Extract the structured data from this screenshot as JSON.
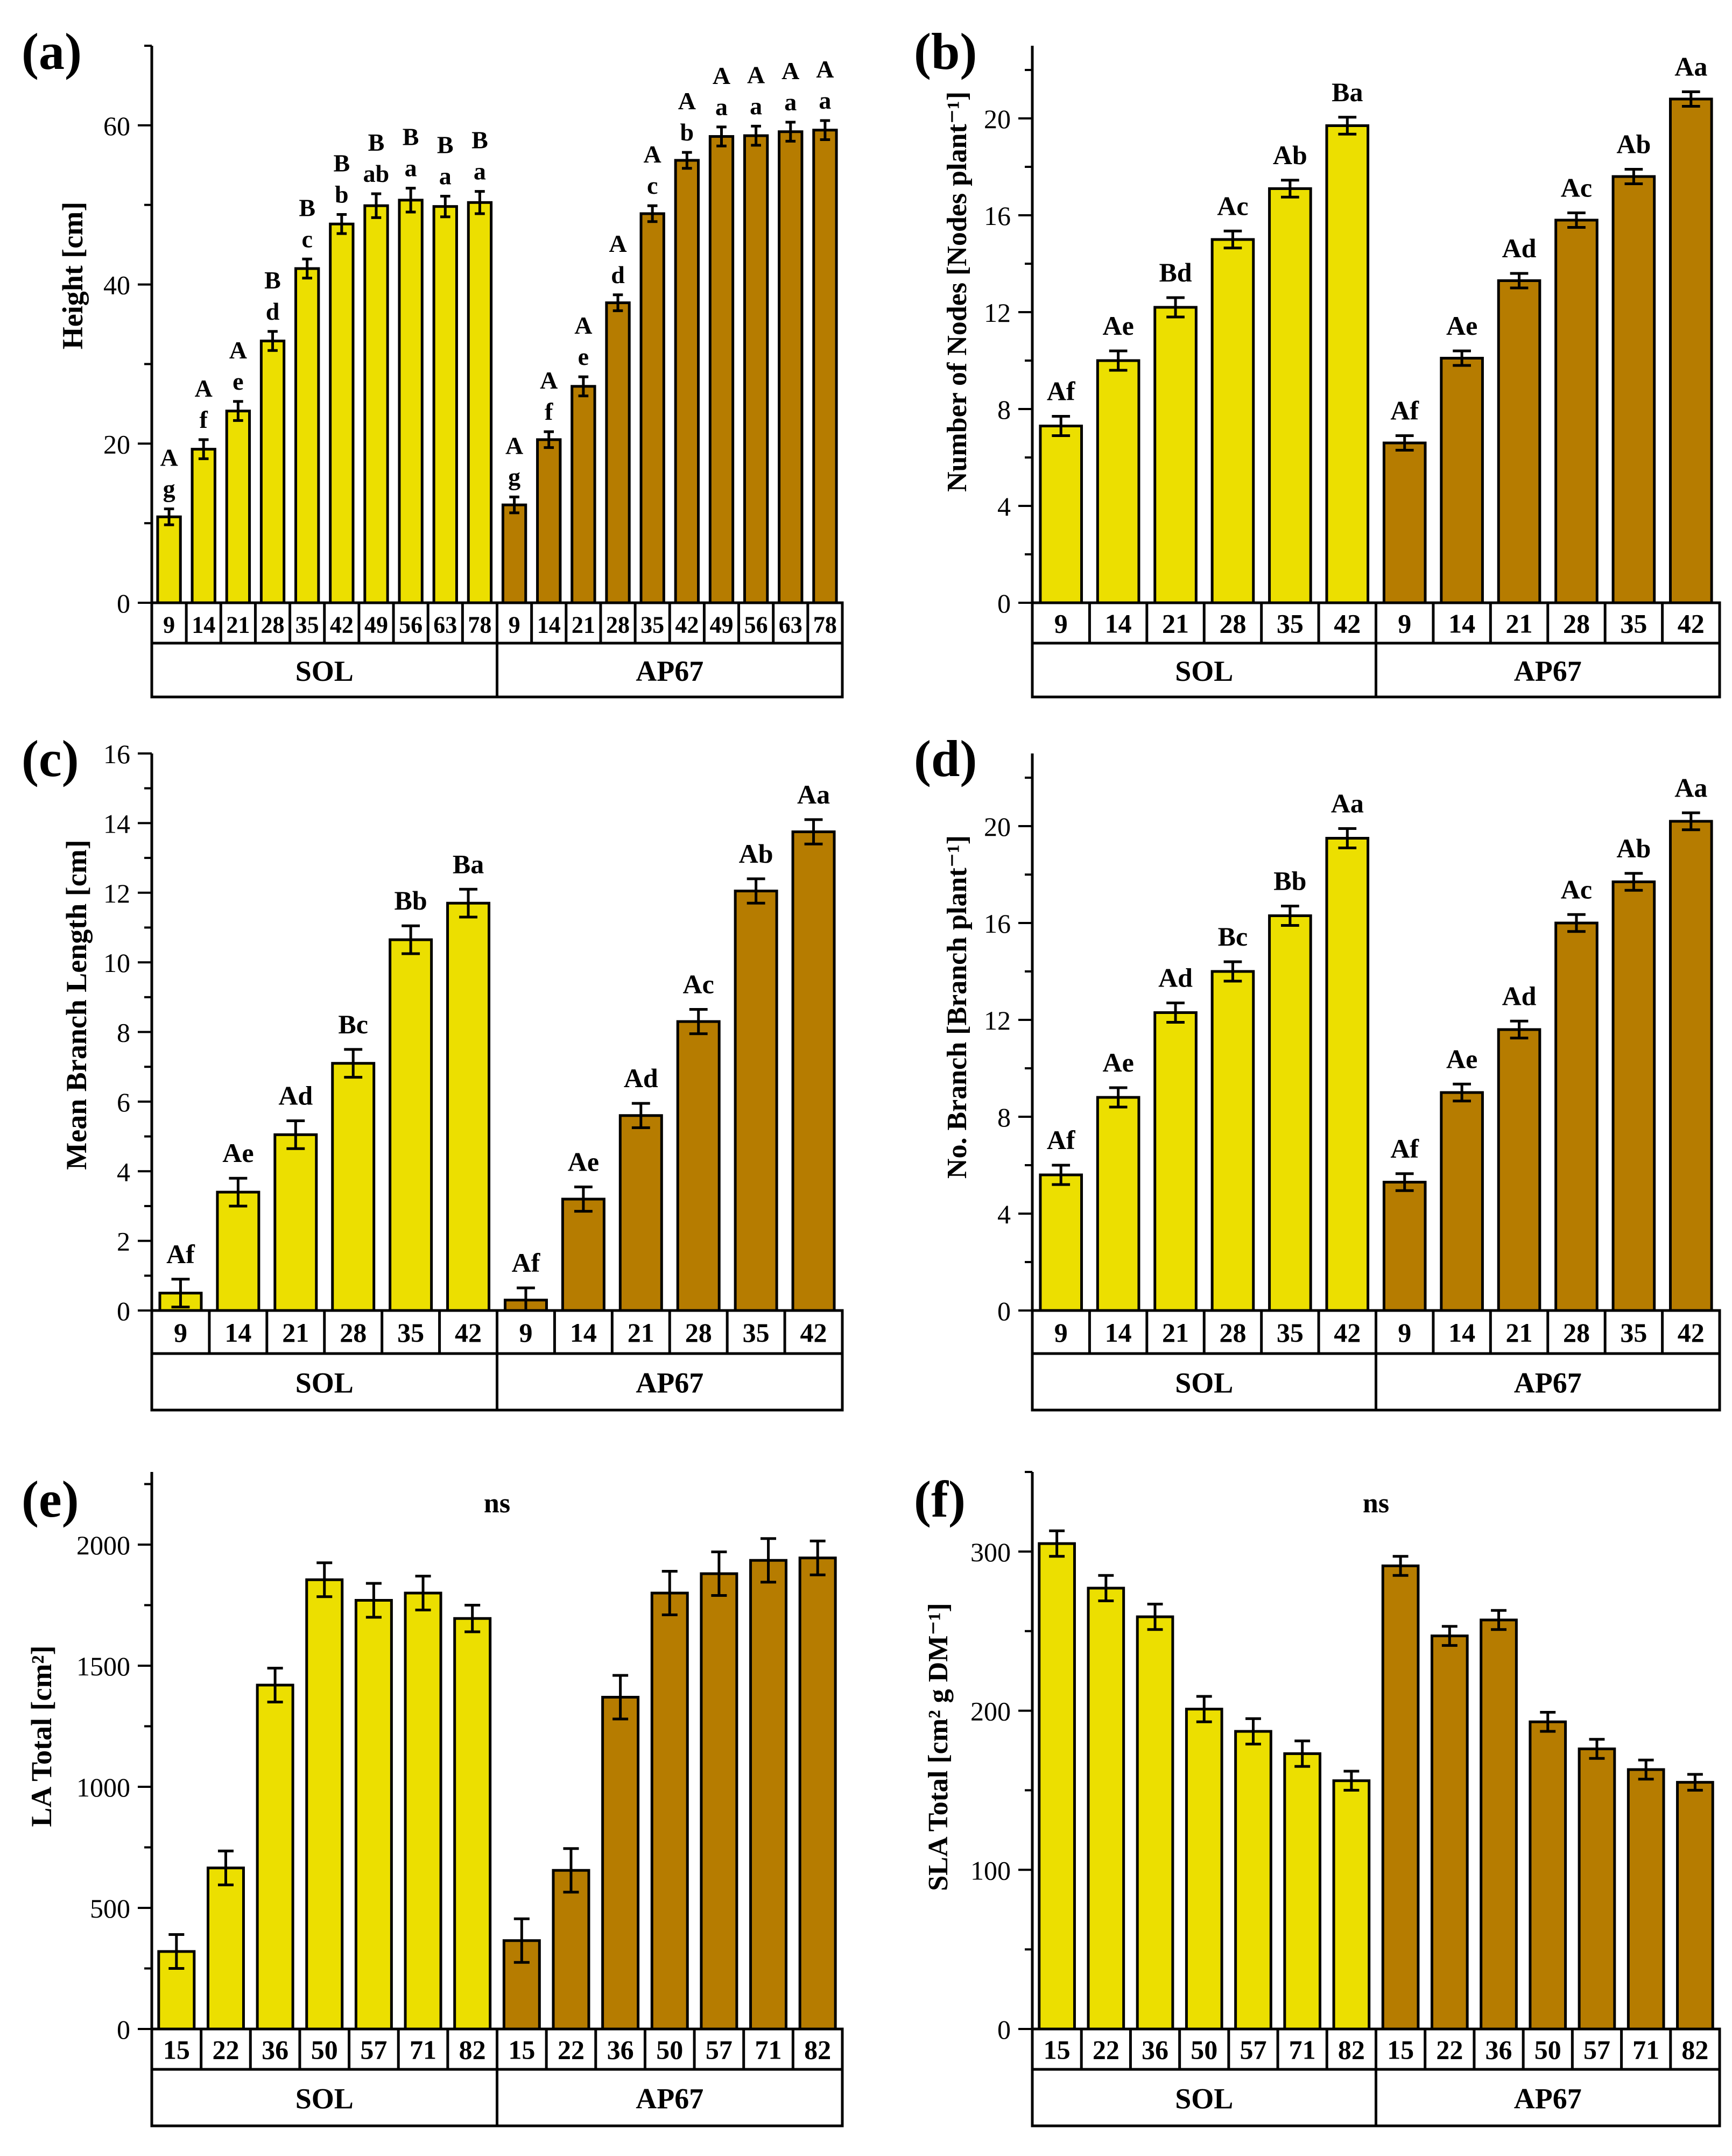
{
  "colors": {
    "sol": "#ecdf00",
    "ap67": "#b67c00",
    "stroke": "#000000"
  },
  "groups": [
    "SOL",
    "AP67"
  ],
  "chart_data": [
    {
      "id": "a",
      "panel_label": "(a)",
      "type": "bar",
      "ylabel": "Height [cm]",
      "ylim": [
        0,
        70
      ],
      "yticks": [
        0,
        20,
        40,
        60
      ],
      "ytick_labels": [
        "0",
        "20",
        "40",
        "60"
      ],
      "minor_step": 10,
      "annotation": "",
      "groups": [
        "SOL",
        "AP67"
      ],
      "categories": [
        "9",
        "14",
        "21",
        "28",
        "35",
        "42",
        "49",
        "56",
        "63",
        "78"
      ],
      "series": [
        {
          "name": "SOL",
          "values": [
            10.8,
            19.3,
            24.1,
            32.9,
            42.0,
            47.6,
            49.9,
            50.6,
            49.8,
            50.3
          ],
          "errors": [
            1.0,
            1.2,
            1.2,
            1.2,
            1.2,
            1.2,
            1.5,
            1.5,
            1.3,
            1.4
          ],
          "labels_top": [
            "A",
            "A",
            "A",
            "B",
            "B",
            "B",
            "B",
            "B",
            "B",
            "B"
          ],
          "labels_bottom": [
            "g",
            "f",
            "e",
            "d",
            "c",
            "b",
            "ab",
            "a",
            "a",
            "a"
          ]
        },
        {
          "name": "AP67",
          "values": [
            12.3,
            20.5,
            27.2,
            37.7,
            48.9,
            55.6,
            58.6,
            58.7,
            59.2,
            59.4
          ],
          "errors": [
            1.0,
            1.0,
            1.2,
            1.0,
            1.0,
            1.0,
            1.2,
            1.2,
            1.2,
            1.2
          ],
          "labels_top": [
            "A",
            "A",
            "A",
            "A",
            "A",
            "A",
            "A",
            "A",
            "A",
            "A"
          ],
          "labels_bottom": [
            "g",
            "f",
            "e",
            "d",
            "c",
            "b",
            "a",
            "a",
            "a",
            "a"
          ]
        }
      ]
    },
    {
      "id": "b",
      "panel_label": "(b)",
      "type": "bar",
      "ylabel": "Number of Nodes [Nodes plant⁻¹]",
      "ylim": [
        0,
        23
      ],
      "yticks": [
        0,
        4,
        8,
        12,
        16,
        20
      ],
      "ytick_labels": [
        "0",
        "4",
        "8",
        "12",
        "16",
        "20"
      ],
      "minor_step": 2,
      "annotation": "",
      "groups": [
        "SOL",
        "AP67"
      ],
      "categories": [
        "9",
        "14",
        "21",
        "28",
        "35",
        "42"
      ],
      "series": [
        {
          "name": "SOL",
          "values": [
            7.3,
            10.0,
            12.2,
            15.0,
            17.1,
            19.7
          ],
          "errors": [
            0.4,
            0.4,
            0.4,
            0.35,
            0.35,
            0.35
          ],
          "labels_top": [
            "Af",
            "Ae",
            "Bd",
            "Ac",
            "Ab",
            "Ba"
          ],
          "labels_bottom": [
            "",
            "",
            "",
            "",
            "",
            ""
          ]
        },
        {
          "name": "AP67",
          "values": [
            6.6,
            10.1,
            13.3,
            15.8,
            17.6,
            20.8
          ],
          "errors": [
            0.3,
            0.3,
            0.3,
            0.3,
            0.3,
            0.3
          ],
          "labels_top": [
            "Af",
            "Ae",
            "Ad",
            "Ac",
            "Ab",
            "Aa"
          ],
          "labels_bottom": [
            "",
            "",
            "",
            "",
            "",
            ""
          ]
        }
      ]
    },
    {
      "id": "c",
      "panel_label": "(c)",
      "type": "bar",
      "ylabel": "Mean Branch Length [cm]",
      "ylim": [
        0,
        16
      ],
      "yticks": [
        0,
        2,
        4,
        6,
        8,
        10,
        12,
        14,
        16
      ],
      "ytick_labels": [
        "0",
        "2",
        "4",
        "6",
        "8",
        "10",
        "12",
        "14",
        "16"
      ],
      "minor_step": 1,
      "annotation": "",
      "groups": [
        "SOL",
        "AP67"
      ],
      "categories": [
        "9",
        "14",
        "21",
        "28",
        "35",
        "42"
      ],
      "series": [
        {
          "name": "SOL",
          "values": [
            0.5,
            3.4,
            5.05,
            7.1,
            10.65,
            11.7
          ],
          "errors": [
            0.4,
            0.4,
            0.4,
            0.4,
            0.4,
            0.4
          ],
          "labels_top": [
            "Af",
            "Ae",
            "Ad",
            "Bc",
            "Bb",
            "Ba"
          ],
          "labels_bottom": [
            "",
            "",
            "",
            "",
            "",
            ""
          ]
        },
        {
          "name": "AP67",
          "values": [
            0.3,
            3.2,
            5.6,
            8.3,
            12.05,
            13.75
          ],
          "errors": [
            0.35,
            0.35,
            0.35,
            0.35,
            0.35,
            0.35
          ],
          "labels_top": [
            "Af",
            "Ae",
            "Ad",
            "Ac",
            "Ab",
            "Aa"
          ],
          "labels_bottom": [
            "",
            "",
            "",
            "",
            "",
            ""
          ]
        }
      ]
    },
    {
      "id": "d",
      "panel_label": "(d)",
      "type": "bar",
      "ylabel": "No. Branch [Branch plant⁻¹]",
      "ylim": [
        0,
        23
      ],
      "yticks": [
        0,
        4,
        8,
        12,
        16,
        20
      ],
      "ytick_labels": [
        "0",
        "4",
        "8",
        "12",
        "16",
        "20"
      ],
      "minor_step": 2,
      "annotation": "",
      "groups": [
        "SOL",
        "AP67"
      ],
      "categories": [
        "9",
        "14",
        "21",
        "28",
        "35",
        "42"
      ],
      "series": [
        {
          "name": "SOL",
          "values": [
            5.6,
            8.8,
            12.3,
            14.0,
            16.3,
            19.5
          ],
          "errors": [
            0.4,
            0.4,
            0.4,
            0.4,
            0.4,
            0.4
          ],
          "labels_top": [
            "Af",
            "Ae",
            "Ad",
            "Bc",
            "Bb",
            "Aa"
          ],
          "labels_bottom": [
            "",
            "",
            "",
            "",
            "",
            ""
          ]
        },
        {
          "name": "AP67",
          "values": [
            5.3,
            9.0,
            11.6,
            16.0,
            17.7,
            20.2
          ],
          "errors": [
            0.35,
            0.35,
            0.35,
            0.35,
            0.35,
            0.35
          ],
          "labels_top": [
            "Af",
            "Ae",
            "Ad",
            "Ac",
            "Ab",
            "Aa"
          ],
          "labels_bottom": [
            "",
            "",
            "",
            "",
            "",
            ""
          ]
        }
      ]
    },
    {
      "id": "e",
      "panel_label": "(e)",
      "type": "bar",
      "ylabel": "LA Total [cm²]",
      "ylim": [
        0,
        2300
      ],
      "yticks": [
        0,
        500,
        1000,
        1500,
        2000
      ],
      "ytick_labels": [
        "0",
        "500",
        "1000",
        "1500",
        "2000"
      ],
      "minor_step": 250,
      "annotation": "ns",
      "groups": [
        "SOL",
        "AP67"
      ],
      "categories": [
        "15",
        "22",
        "36",
        "50",
        "57",
        "71",
        "82"
      ],
      "series": [
        {
          "name": "SOL",
          "values": [
            320,
            665,
            1420,
            1855,
            1770,
            1800,
            1695
          ],
          "errors": [
            70,
            70,
            70,
            70,
            70,
            70,
            55
          ],
          "labels_top": [
            "",
            "",
            "",
            "",
            "",
            "",
            ""
          ],
          "labels_bottom": [
            "",
            "",
            "",
            "",
            "",
            "",
            ""
          ]
        },
        {
          "name": "AP67",
          "values": [
            365,
            655,
            1370,
            1800,
            1880,
            1935,
            1945
          ],
          "errors": [
            90,
            90,
            90,
            90,
            90,
            90,
            70
          ],
          "labels_top": [
            "",
            "",
            "",
            "",
            "",
            "",
            ""
          ],
          "labels_bottom": [
            "",
            "",
            "",
            "",
            "",
            "",
            ""
          ]
        }
      ]
    },
    {
      "id": "f",
      "panel_label": "(f)",
      "type": "bar",
      "ylabel": "SLA Total [cm² g DM⁻¹]",
      "ylim": [
        0,
        350
      ],
      "yticks": [
        0,
        100,
        200,
        300
      ],
      "ytick_labels": [
        "0",
        "100",
        "200",
        "300"
      ],
      "minor_step": 50,
      "annotation": "ns",
      "groups": [
        "SOL",
        "AP67"
      ],
      "categories": [
        "15",
        "22",
        "36",
        "50",
        "57",
        "71",
        "82"
      ],
      "series": [
        {
          "name": "SOL",
          "values": [
            305,
            277,
            259,
            201,
            187,
            173,
            156
          ],
          "errors": [
            8,
            8,
            8,
            8,
            8,
            8,
            6
          ],
          "labels_top": [
            "",
            "",
            "",
            "",
            "",
            "",
            ""
          ],
          "labels_bottom": [
            "",
            "",
            "",
            "",
            "",
            "",
            ""
          ]
        },
        {
          "name": "AP67",
          "values": [
            291,
            247,
            257,
            193,
            176,
            163,
            155
          ],
          "errors": [
            6,
            6,
            6,
            6,
            6,
            6,
            5
          ],
          "labels_top": [
            "",
            "",
            "",
            "",
            "",
            "",
            ""
          ],
          "labels_bottom": [
            "",
            "",
            "",
            "",
            "",
            "",
            ""
          ]
        }
      ]
    }
  ]
}
